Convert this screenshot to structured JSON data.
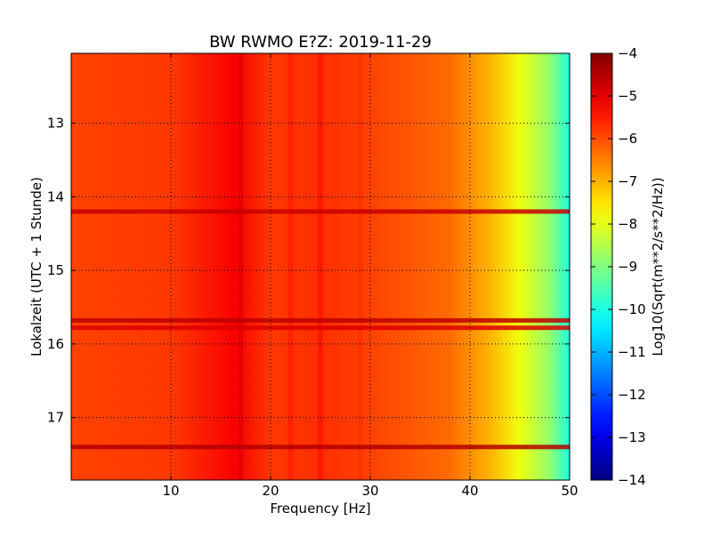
{
  "chart_data": {
    "type": "heatmap",
    "title": "BW RWMO E?Z: 2019-11-29",
    "xlabel": "Frequency [Hz]",
    "ylabel": "Lokalzeit (UTC + 1 Stunde)",
    "xlim": [
      0,
      50
    ],
    "ylim": [
      17.85,
      12.05
    ],
    "y_inverted": true,
    "x_ticks": [
      10,
      20,
      30,
      40,
      50
    ],
    "x_tick_labels": [
      "10",
      "20",
      "30",
      "40",
      "50"
    ],
    "y_ticks": [
      13,
      14,
      15,
      16,
      17
    ],
    "y_tick_labels": [
      "13",
      "14",
      "15",
      "16",
      "17"
    ],
    "grid": true,
    "colormap": "jet",
    "colorbar": {
      "label": "Log10(Sqrt(m**2/s**2/Hz))",
      "range": [
        -14,
        -4
      ],
      "ticks": [
        -4,
        -5,
        -6,
        -7,
        -8,
        -9,
        -10,
        -11,
        -12,
        -13,
        -14
      ],
      "tick_labels": [
        "−4",
        "−5",
        "−6",
        "−7",
        "−8",
        "−9",
        "−10",
        "−11",
        "−12",
        "−13",
        "−14"
      ]
    },
    "spectrum_profile": [
      {
        "f": 0,
        "v": -5.9
      },
      {
        "f": 10,
        "v": -5.8
      },
      {
        "f": 16.5,
        "v": -5.2
      },
      {
        "f": 20,
        "v": -5.8
      },
      {
        "f": 25,
        "v": -5.7
      },
      {
        "f": 30,
        "v": -5.9
      },
      {
        "f": 38,
        "v": -6.3
      },
      {
        "f": 42,
        "v": -7.0
      },
      {
        "f": 45,
        "v": -7.9
      },
      {
        "f": 48,
        "v": -8.8
      },
      {
        "f": 50,
        "v": -10.0
      }
    ],
    "vertical_features": [
      {
        "f": 17.0,
        "v": -4.9
      },
      {
        "f": 22.0,
        "v": -5.5
      },
      {
        "f": 25.0,
        "v": -5.4
      },
      {
        "f": 29.0,
        "v": -5.7
      }
    ],
    "horizontal_events": [
      {
        "time": 14.2,
        "v": -4.7
      },
      {
        "time": 15.68,
        "v": -4.6
      },
      {
        "time": 15.78,
        "v": -4.9
      },
      {
        "time": 17.4,
        "v": -4.5
      }
    ]
  }
}
